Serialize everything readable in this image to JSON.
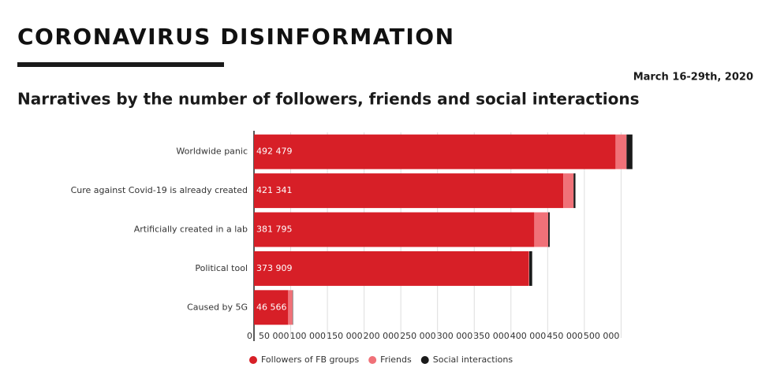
{
  "chart_data": {
    "type": "stacked-barh",
    "title": "CORONAVIRUS DISINFORMATION",
    "subtitle": "Narratives by the number of followers, friends and social interactions",
    "date": "March 16-29th, 2020",
    "categories": [
      "Worldwide panic",
      "Cure against Covid-19 is already created",
      "Artificially created in a lab",
      "Political tool",
      "Caused by 5G"
    ],
    "series": [
      {
        "name": "Followers of FB groups",
        "color": "#d71f27",
        "values": [
          492479,
          421341,
          381795,
          373909,
          46566
        ],
        "value_labels": [
          "492 479",
          "421 341",
          "381 795",
          "373 909",
          "46 566"
        ]
      },
      {
        "name": "Friends",
        "color": "#f07178",
        "values": [
          15000,
          14000,
          19000,
          1000,
          6000
        ]
      },
      {
        "name": "Social interactions",
        "color": "#1a1a1a",
        "values": [
          8000,
          2500,
          2000,
          4000,
          500
        ]
      }
    ],
    "xlim": [
      0,
      520000
    ],
    "xticks": [
      0,
      {
        "value": 50000,
        "label": "50 000"
      },
      {
        "value": 100000,
        "label": "100 000"
      },
      {
        "value": 150000,
        "label": "150 000"
      },
      {
        "value": 200000,
        "label": "200 000"
      },
      {
        "value": 250000,
        "label": "250 000"
      },
      {
        "value": 300000,
        "label": "300 000"
      },
      {
        "value": 350000,
        "label": "350 000"
      },
      {
        "value": 400000,
        "label": "400 000"
      },
      {
        "value": 450000,
        "label": "450 000"
      },
      {
        "value": 500000,
        "label": "500 000"
      }
    ],
    "grid": true,
    "legend": "bottom"
  }
}
